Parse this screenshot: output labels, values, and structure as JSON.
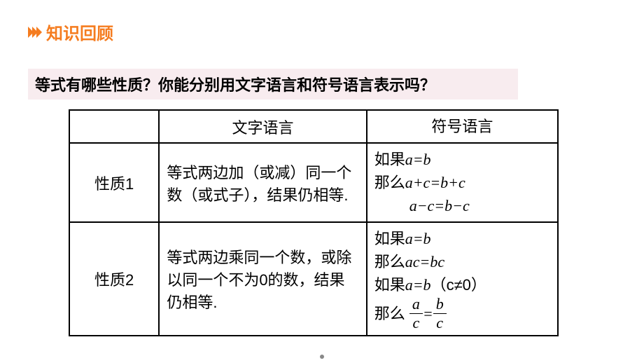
{
  "header": {
    "title": "知识回顾",
    "chevron_color": "#f57c1f",
    "title_color": "#f57c1f",
    "title_fontsize": 24
  },
  "question": {
    "text": "等式有哪些性质？你能分别用文字语言和符号语言表示吗？",
    "background": "#f8ecef",
    "fontsize": 22
  },
  "table": {
    "border_color": "#000000",
    "fontsize": 22,
    "headers": {
      "blank": "",
      "text_lang": "文字语言",
      "symbol_lang": "符号语言"
    },
    "rows": [
      {
        "label": "性质1",
        "text": "等式两边加（或减）同一个数（或式子），结果仍相等.",
        "sym_line1_prefix": "如果",
        "sym_line1_eq": "a=b",
        "sym_line2_prefix": "那么",
        "sym_line2_eq": "a+c=b+c",
        "sym_line3_eq": "a−c=b−c"
      },
      {
        "label": "性质2",
        "text": "等式两边乘同一个数，或除以同一个不为0的数，结果仍相等.",
        "sym_line1_prefix": "如果",
        "sym_line1_eq": "a=b",
        "sym_line2_prefix": "那么",
        "sym_line2_eq": "ac=bc",
        "sym_line3_prefix": "如果",
        "sym_line3_eq": "a=b",
        "sym_line3_paren": "（c≠0）",
        "sym_line4_prefix": "那么",
        "frac1_num": "a",
        "frac1_den": "c",
        "frac_eq": " = ",
        "frac2_num": "b",
        "frac2_den": "c"
      }
    ]
  }
}
